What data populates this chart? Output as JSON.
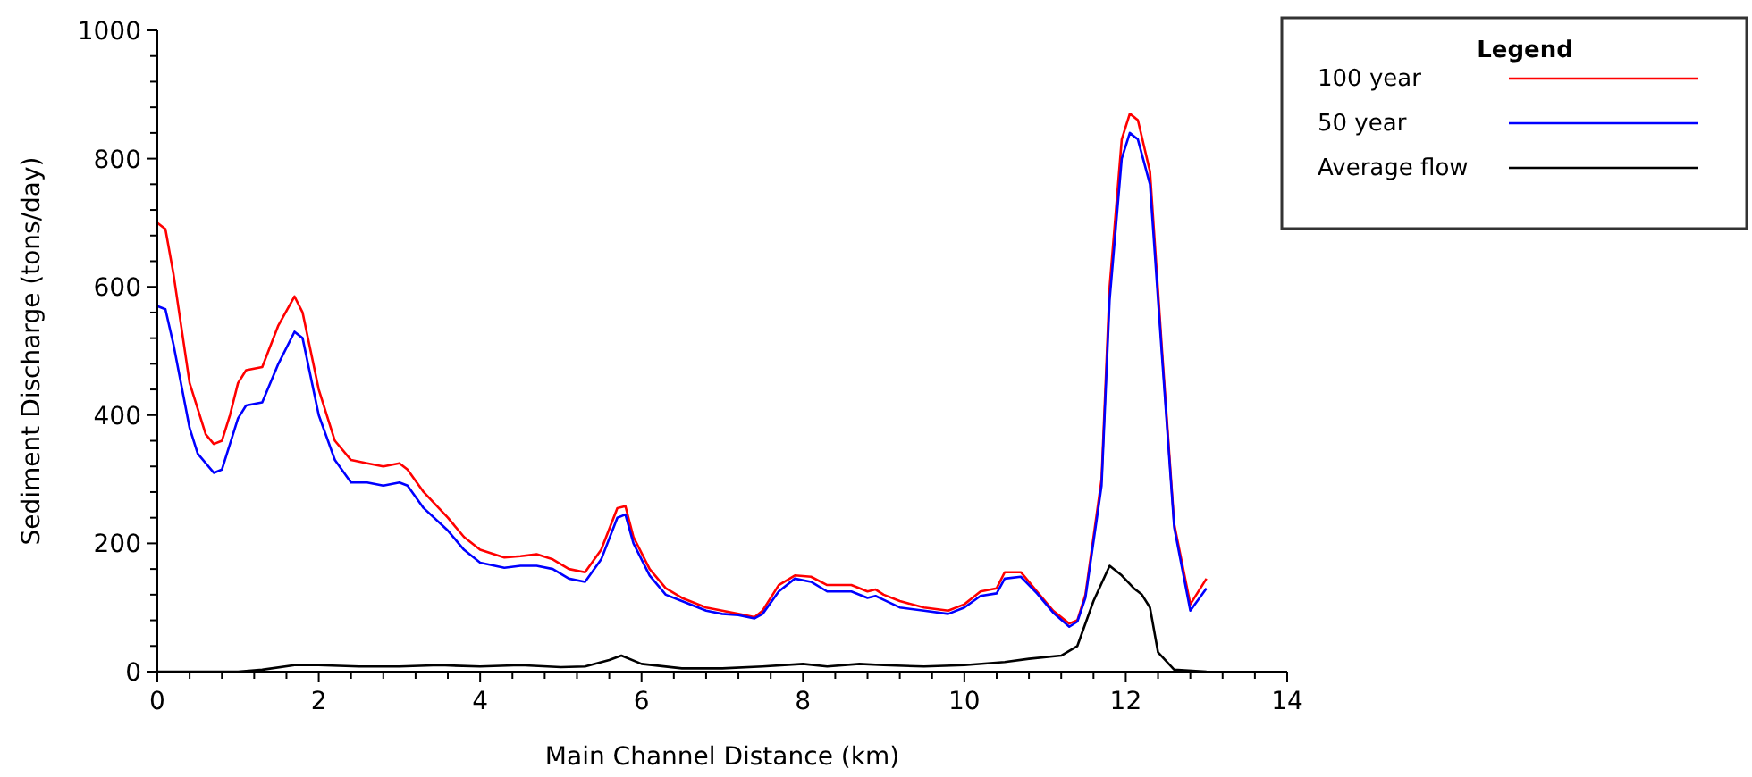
{
  "chart_data": {
    "type": "line",
    "xlabel": "Main Channel Distance (km)",
    "ylabel": "Sediment Discharge (tons/day)",
    "legend_title": "Legend",
    "legend": "top right",
    "grid": false,
    "marker": "none",
    "line_style": "solid",
    "xlim": [
      0,
      14
    ],
    "ylim": [
      0,
      1000
    ],
    "xticks": [
      0,
      {
        "value": 0.4,
        "label": null
      },
      {
        "value": 0.8,
        "label": null
      },
      {
        "value": 1.2,
        "label": null
      },
      {
        "value": 1.6,
        "label": null
      },
      2,
      {
        "value": 2.4,
        "label": null
      },
      {
        "value": 2.8,
        "label": null
      },
      {
        "value": 3.2,
        "label": null
      },
      {
        "value": 3.6,
        "label": null
      },
      4,
      {
        "value": 4.4,
        "label": null
      },
      {
        "value": 4.8,
        "label": null
      },
      {
        "value": 5.2,
        "label": null
      },
      {
        "value": 5.6,
        "label": null
      },
      6,
      {
        "value": 6.4,
        "label": null
      },
      {
        "value": 6.8,
        "label": null
      },
      {
        "value": 7.2,
        "label": null
      },
      {
        "value": 7.6,
        "label": null
      },
      8,
      {
        "value": 8.4,
        "label": null
      },
      {
        "value": 8.8,
        "label": null
      },
      {
        "value": 9.2,
        "label": null
      },
      {
        "value": 9.6,
        "label": null
      },
      10,
      {
        "value": 10.4,
        "label": null
      },
      {
        "value": 10.8,
        "label": null
      },
      {
        "value": 11.2,
        "label": null
      },
      {
        "value": 11.6,
        "label": null
      },
      12,
      {
        "value": 12.4,
        "label": null
      },
      {
        "value": 12.8,
        "label": null
      },
      {
        "value": 13.2,
        "label": null
      },
      {
        "value": 13.6,
        "label": null
      },
      14
    ],
    "yticks": [
      0,
      {
        "value": 40,
        "label": null
      },
      {
        "value": 80,
        "label": null
      },
      {
        "value": 120,
        "label": null
      },
      {
        "value": 160,
        "label": null
      },
      200,
      {
        "value": 240,
        "label": null
      },
      {
        "value": 280,
        "label": null
      },
      {
        "value": 320,
        "label": null
      },
      {
        "value": 360,
        "label": null
      },
      400,
      {
        "value": 440,
        "label": null
      },
      {
        "value": 480,
        "label": null
      },
      {
        "value": 520,
        "label": null
      },
      {
        "value": 560,
        "label": null
      },
      600,
      {
        "value": 640,
        "label": null
      },
      {
        "value": 680,
        "label": null
      },
      {
        "value": 720,
        "label": null
      },
      {
        "value": 760,
        "label": null
      },
      800,
      {
        "value": 840,
        "label": null
      },
      {
        "value": 880,
        "label": null
      },
      {
        "value": 920,
        "label": null
      },
      {
        "value": 960,
        "label": null
      },
      1000
    ],
    "series": [
      {
        "name": "100 year",
        "color": "#ff0000",
        "x": [
          0,
          0.1,
          0.2,
          0.4,
          0.6,
          0.7,
          0.8,
          0.9,
          1.0,
          1.1,
          1.3,
          1.5,
          1.7,
          1.8,
          2.0,
          2.2,
          2.4,
          2.6,
          2.8,
          3.0,
          3.1,
          3.3,
          3.6,
          3.8,
          4.0,
          4.3,
          4.5,
          4.7,
          4.9,
          5.1,
          5.3,
          5.5,
          5.7,
          5.8,
          5.9,
          6.1,
          6.3,
          6.5,
          6.8,
          7.0,
          7.2,
          7.4,
          7.5,
          7.7,
          7.9,
          8.1,
          8.3,
          8.6,
          8.8,
          8.9,
          9.0,
          9.2,
          9.5,
          9.8,
          10.0,
          10.2,
          10.4,
          10.5,
          10.7,
          10.9,
          11.1,
          11.3,
          11.4,
          11.5,
          11.7,
          11.8,
          11.95,
          12.05,
          12.15,
          12.3,
          12.45,
          12.6,
          12.8,
          13.0
        ],
        "values": [
          700,
          690,
          620,
          450,
          370,
          355,
          360,
          400,
          450,
          470,
          475,
          540,
          585,
          560,
          440,
          360,
          330,
          325,
          320,
          325,
          315,
          280,
          240,
          210,
          190,
          178,
          180,
          183,
          175,
          160,
          155,
          190,
          255,
          258,
          210,
          160,
          130,
          115,
          100,
          95,
          90,
          85,
          95,
          135,
          150,
          148,
          135,
          135,
          125,
          128,
          120,
          110,
          100,
          95,
          105,
          125,
          130,
          155,
          155,
          125,
          95,
          75,
          80,
          120,
          300,
          600,
          830,
          870,
          860,
          780,
          500,
          230,
          105,
          145
        ]
      },
      {
        "name": "50 year",
        "color": "#0000ff",
        "x": [
          0,
          0.1,
          0.2,
          0.4,
          0.5,
          0.7,
          0.8,
          1.0,
          1.1,
          1.3,
          1.5,
          1.7,
          1.8,
          2.0,
          2.2,
          2.4,
          2.6,
          2.8,
          3.0,
          3.1,
          3.3,
          3.6,
          3.8,
          4.0,
          4.3,
          4.5,
          4.7,
          4.9,
          5.1,
          5.3,
          5.5,
          5.7,
          5.8,
          5.9,
          6.1,
          6.3,
          6.5,
          6.8,
          7.0,
          7.2,
          7.4,
          7.5,
          7.7,
          7.9,
          8.1,
          8.3,
          8.6,
          8.8,
          8.9,
          9.0,
          9.2,
          9.5,
          9.8,
          10.0,
          10.2,
          10.4,
          10.5,
          10.7,
          10.9,
          11.1,
          11.3,
          11.4,
          11.5,
          11.7,
          11.8,
          11.95,
          12.05,
          12.15,
          12.3,
          12.45,
          12.6,
          12.8,
          13.0
        ],
        "values": [
          570,
          565,
          510,
          380,
          340,
          310,
          315,
          395,
          415,
          420,
          480,
          530,
          520,
          400,
          330,
          295,
          295,
          290,
          295,
          290,
          255,
          220,
          190,
          170,
          162,
          165,
          165,
          160,
          145,
          140,
          175,
          240,
          245,
          200,
          150,
          120,
          110,
          95,
          90,
          88,
          83,
          90,
          125,
          145,
          140,
          125,
          125,
          115,
          118,
          112,
          100,
          95,
          90,
          100,
          118,
          122,
          145,
          148,
          122,
          92,
          70,
          78,
          115,
          290,
          580,
          800,
          840,
          830,
          760,
          490,
          225,
          95,
          130
        ]
      },
      {
        "name": "Average flow",
        "color": "#000000",
        "x": [
          0,
          1.0,
          1.3,
          1.7,
          2.0,
          2.5,
          3.0,
          3.5,
          4.0,
          4.5,
          5.0,
          5.3,
          5.6,
          5.75,
          6.0,
          6.5,
          7.0,
          7.5,
          8.0,
          8.3,
          8.7,
          9.0,
          9.5,
          10.0,
          10.5,
          10.8,
          11.2,
          11.4,
          11.6,
          11.8,
          11.95,
          12.1,
          12.2,
          12.3,
          12.4,
          12.6,
          13.0
        ],
        "values": [
          0,
          0,
          3,
          10,
          10,
          8,
          8,
          10,
          8,
          10,
          7,
          8,
          18,
          25,
          12,
          5,
          5,
          8,
          12,
          8,
          12,
          10,
          8,
          10,
          15,
          20,
          25,
          40,
          110,
          165,
          150,
          130,
          120,
          100,
          30,
          3,
          0
        ]
      }
    ]
  }
}
